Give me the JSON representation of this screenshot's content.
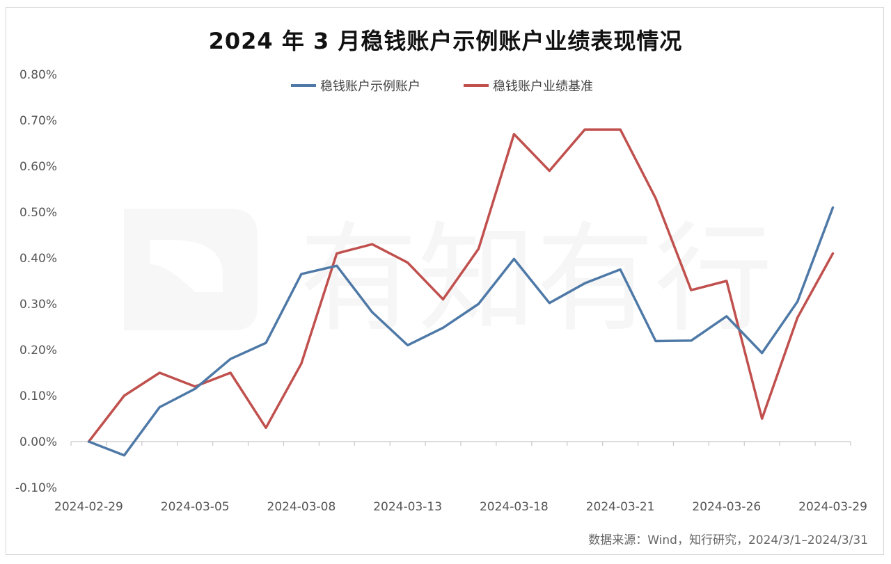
{
  "title": "2024 年 3 月稳钱账户示例账户业绩表现情况",
  "source": "数据来源：Wind，知行研究，2024/3/1–2024/3/31",
  "watermark": "有知有行",
  "chart_data": {
    "type": "line",
    "title": "2024 年 3 月稳钱账户示例账户业绩表现情况",
    "xlabel": "",
    "ylabel": "",
    "ylim": [
      -0.001,
      0.008
    ],
    "yticks": [
      -0.001,
      0.0,
      0.001,
      0.002,
      0.003,
      0.004,
      0.005,
      0.006,
      0.007,
      0.008
    ],
    "ytick_labels": [
      "-0.10%",
      "0.00%",
      "0.10%",
      "0.20%",
      "0.30%",
      "0.40%",
      "0.50%",
      "0.60%",
      "0.70%",
      "0.80%"
    ],
    "x": [
      "2024-02-29",
      "2024-03-01",
      "2024-03-04",
      "2024-03-05",
      "2024-03-06",
      "2024-03-07",
      "2024-03-08",
      "2024-03-11",
      "2024-03-12",
      "2024-03-13",
      "2024-03-14",
      "2024-03-15",
      "2024-03-18",
      "2024-03-19",
      "2024-03-20",
      "2024-03-21",
      "2024-03-22",
      "2024-03-25",
      "2024-03-26",
      "2024-03-27",
      "2024-03-28",
      "2024-03-29"
    ],
    "xtick_labels": [
      {
        "index": 0,
        "label": "2024-02-29"
      },
      {
        "index": 3,
        "label": "2024-03-05"
      },
      {
        "index": 6,
        "label": "2024-03-08"
      },
      {
        "index": 9,
        "label": "2024-03-13"
      },
      {
        "index": 12,
        "label": "2024-03-18"
      },
      {
        "index": 15,
        "label": "2024-03-21"
      },
      {
        "index": 18,
        "label": "2024-03-26"
      },
      {
        "index": 21,
        "label": "2024-03-29"
      }
    ],
    "grid": false,
    "legend_position": "top-center",
    "series": [
      {
        "name": "稳钱账户示例账户",
        "color": "#4e79a7",
        "values": [
          0.0,
          -0.0003,
          0.00075,
          0.00115,
          0.0018,
          0.00215,
          0.00365,
          0.00383,
          0.00282,
          0.0021,
          0.00248,
          0.003,
          0.00398,
          0.00302,
          0.00345,
          0.00375,
          0.00219,
          0.0022,
          0.00273,
          0.00193,
          0.00305,
          0.0051
        ]
      },
      {
        "name": "稳钱账户业绩基准",
        "color": "#c0504d",
        "values": [
          0.0,
          0.001,
          0.0015,
          0.0012,
          0.0015,
          0.0003,
          0.0017,
          0.0041,
          0.0043,
          0.0039,
          0.0031,
          0.0042,
          0.0067,
          0.0059,
          0.0068,
          0.0068,
          0.0053,
          0.0033,
          0.0035,
          0.0005,
          0.0027,
          0.0041
        ]
      }
    ]
  }
}
